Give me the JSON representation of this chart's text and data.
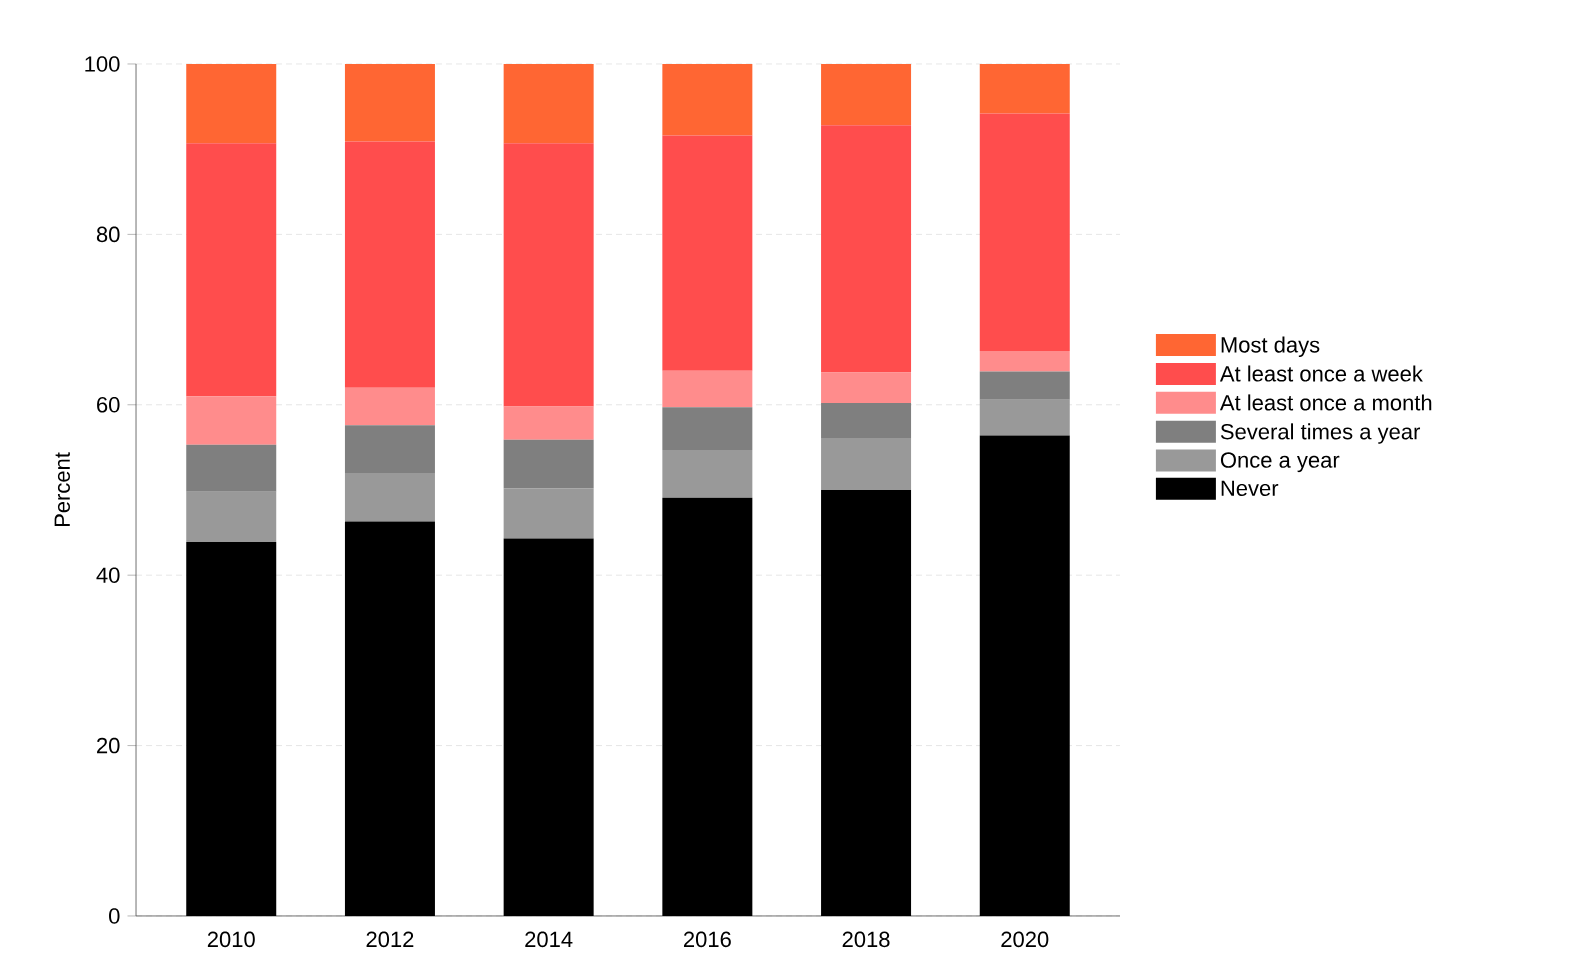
{
  "chart_data": {
    "type": "bar",
    "stacked": true,
    "ylabel": "Percent",
    "categories": [
      "2010",
      "2012",
      "2014",
      "2016",
      "2018",
      "2020"
    ],
    "series": [
      {
        "name": "Never",
        "color": "#000000",
        "values": [
          43.9,
          46.3,
          44.3,
          49.1,
          50.0,
          56.4
        ]
      },
      {
        "name": "Once a year",
        "color": "#999999",
        "values": [
          5.9,
          5.7,
          5.9,
          5.6,
          6.1,
          4.2
        ]
      },
      {
        "name": "Several times a year",
        "color": "#7f7f7f",
        "values": [
          5.5,
          5.6,
          5.7,
          5.0,
          4.1,
          3.3
        ]
      },
      {
        "name": "At least once a month",
        "color": "#ff8c8c",
        "values": [
          5.7,
          4.4,
          3.9,
          4.3,
          3.6,
          2.4
        ]
      },
      {
        "name": "At least once a week",
        "color": "#ff4d4d",
        "values": [
          29.7,
          28.9,
          30.9,
          27.6,
          29.0,
          27.9
        ]
      },
      {
        "name": "Most days",
        "color": "#ff6633",
        "values": [
          9.3,
          9.1,
          9.3,
          8.4,
          7.2,
          5.8
        ]
      }
    ],
    "ylim": [
      0,
      100
    ],
    "yticks": [
      0,
      20,
      40,
      60,
      80,
      100
    ],
    "grid": "y",
    "legend": "right"
  }
}
